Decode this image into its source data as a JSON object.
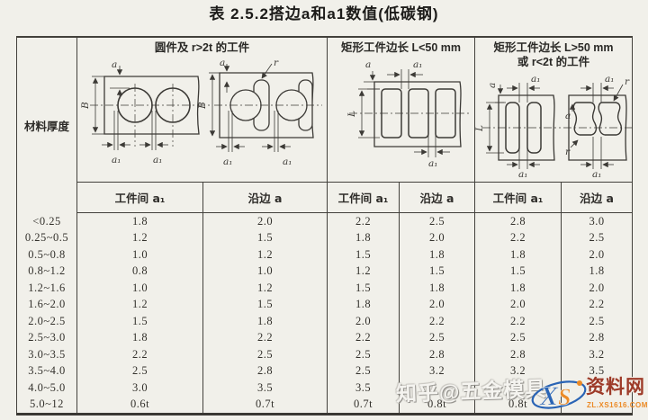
{
  "title": "表 2.5.2搭边a和a1数值(低碳钢)",
  "table": {
    "row_header": "材料厚度",
    "groups": [
      {
        "title": "圆件及 r>2t 的工件",
        "title2": ""
      },
      {
        "title": "矩形工件边长 L<50 mm",
        "title2": ""
      },
      {
        "title": "矩形工件边长 L>50 mm",
        "title2": "或 r<2t 的工件"
      }
    ],
    "sub_headers": [
      "工件间 a₁",
      "沿边 a",
      "工件间 a₁",
      "沿边 a",
      "工件间 a₁",
      "沿边 a"
    ],
    "rows": [
      {
        "thickness": "<0.25",
        "values": [
          "1.8",
          "2.0",
          "2.2",
          "2.5",
          "2.8",
          "3.0"
        ]
      },
      {
        "thickness": "0.25~0.5",
        "values": [
          "1.2",
          "1.5",
          "1.8",
          "2.0",
          "2.2",
          "2.5"
        ]
      },
      {
        "thickness": "0.5~0.8",
        "values": [
          "1.0",
          "1.2",
          "1.5",
          "1.8",
          "1.8",
          "2.0"
        ]
      },
      {
        "thickness": "0.8~1.2",
        "values": [
          "0.8",
          "1.0",
          "1.2",
          "1.5",
          "1.5",
          "1.8"
        ]
      },
      {
        "thickness": "1.2~1.6",
        "values": [
          "1.0",
          "1.2",
          "1.5",
          "1.8",
          "1.8",
          "2.0"
        ]
      },
      {
        "thickness": "1.6~2.0",
        "values": [
          "1.2",
          "1.5",
          "1.8",
          "2.0",
          "2.0",
          "2.2"
        ]
      },
      {
        "thickness": "2.0~2.5",
        "values": [
          "1.5",
          "1.8",
          "2.0",
          "2.2",
          "2.2",
          "2.5"
        ]
      },
      {
        "thickness": "2.5~3.0",
        "values": [
          "1.8",
          "2.2",
          "2.2",
          "2.5",
          "2.5",
          "2.8"
        ]
      },
      {
        "thickness": "3.0~3.5",
        "values": [
          "2.2",
          "2.5",
          "2.5",
          "2.8",
          "2.8",
          "3.2"
        ]
      },
      {
        "thickness": "3.5~4.0",
        "values": [
          "2.5",
          "2.8",
          "2.5",
          "3.2",
          "3.2",
          "3.5"
        ]
      },
      {
        "thickness": "4.0~5.0",
        "values": [
          "3.0",
          "3.5",
          "3.5",
          "",
          "",
          ""
        ]
      },
      {
        "thickness": "5.0~12",
        "values": [
          "0.6t",
          "0.7t",
          "0.7t",
          "0.8t",
          "0.8t",
          ""
        ]
      }
    ]
  },
  "diagram_labels": {
    "a": "a",
    "a1": "a₁",
    "B": "B",
    "L": "L",
    "r": "r"
  },
  "watermark": {
    "text": "知乎@五金模具",
    "logo_x": "X",
    "logo_s": "S",
    "site": "资料网",
    "url": "ZL.XS1616.COM"
  },
  "colors": {
    "paper": "#f1f0ea",
    "line": "#43413c",
    "ink": "#33312c",
    "wm_blue": "#2a64b5",
    "wm_orange": "#ec8a26",
    "wm_red": "#9d3a28"
  }
}
